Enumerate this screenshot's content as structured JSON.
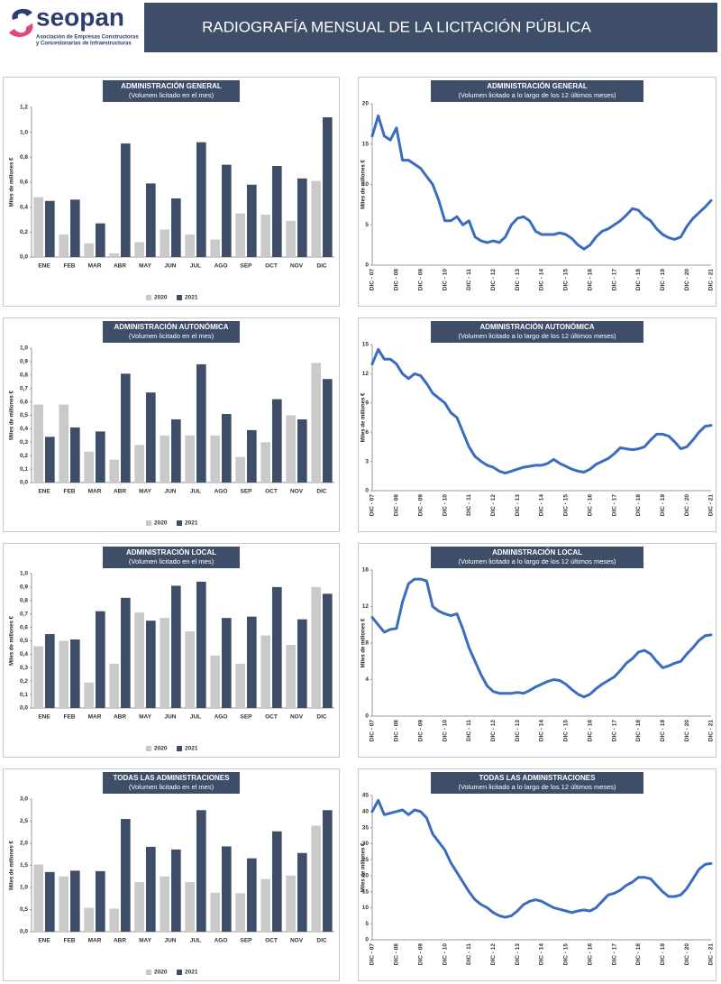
{
  "header": {
    "logo": "seopan",
    "logo_tagline": [
      "Asociación de Empresas Constructoras",
      "y Concesionarias de Infraestructuras"
    ],
    "title": "RADIOGRAFÍA MENSUAL DE LA LICITACIÓN PÚBLICA"
  },
  "chart_data": [
    {
      "type": "bar",
      "title": "ADMINISTRACIÓN GENERAL",
      "subtitle": "(Volumen licitado en el mes)",
      "y_label": "Miles de millones €",
      "categories": [
        "ENE",
        "FEB",
        "MAR",
        "ABR",
        "MAY",
        "JUN",
        "JUL",
        "AGO",
        "SEP",
        "OCT",
        "NOV",
        "DIC"
      ],
      "series": [
        {
          "name": "2020",
          "color": "#c9c9c9",
          "values": [
            0.48,
            0.18,
            0.11,
            0.03,
            0.12,
            0.22,
            0.18,
            0.14,
            0.35,
            0.34,
            0.29,
            0.61
          ]
        },
        {
          "name": "2021",
          "color": "#3e4d68",
          "values": [
            0.45,
            0.46,
            0.27,
            0.91,
            0.59,
            0.47,
            0.92,
            0.74,
            0.58,
            0.73,
            0.63,
            1.12
          ]
        }
      ],
      "ylim": [
        0,
        1.2
      ],
      "yticks": [
        {
          "value": 0,
          "label": "0,0"
        },
        {
          "value": 0.2,
          "label": "0,2"
        },
        {
          "value": 0.4,
          "label": "0,4"
        },
        {
          "value": 0.6,
          "label": "0,6"
        },
        {
          "value": 0.8,
          "label": "0,8"
        },
        {
          "value": 1.0,
          "label": "1,0"
        },
        {
          "value": 1.2,
          "label": "1,2"
        }
      ],
      "grid": false,
      "legend": "bottom"
    },
    {
      "type": "line",
      "title": "ADMINISTRACIÓN GENERAL",
      "subtitle": "(Volumen licitado a lo largo de los 12 últimos meses)",
      "y_label": "Miles de millones €",
      "color": "#3a6cc0",
      "categories": [
        "DIC - 07",
        null,
        null,
        null,
        "DIC - 08",
        null,
        null,
        null,
        "DIC - 09",
        null,
        null,
        null,
        "DIC - 10",
        null,
        null,
        null,
        "DIC - 11",
        null,
        null,
        null,
        "DIC - 12",
        null,
        null,
        null,
        "DIC - 13",
        null,
        null,
        null,
        "DIC - 14",
        null,
        null,
        null,
        "DIC - 15",
        null,
        null,
        null,
        "DIC - 16",
        null,
        null,
        null,
        "DIC - 17",
        null,
        null,
        null,
        "DIC - 18",
        null,
        null,
        null,
        "DIC - 19",
        null,
        null,
        null,
        "DIC - 20",
        null,
        null,
        null,
        "DIC - 21"
      ],
      "values": [
        16,
        18.5,
        16,
        15.5,
        17,
        13,
        13,
        12.5,
        12,
        11,
        10,
        8,
        5.5,
        5.5,
        6,
        5,
        5.5,
        3.5,
        3,
        2.8,
        3,
        2.8,
        3.5,
        5,
        5.8,
        6,
        5.5,
        4.2,
        3.8,
        3.8,
        3.8,
        4,
        3.8,
        3.3,
        2.5,
        2,
        2.5,
        3.5,
        4.2,
        4.5,
        5,
        5.5,
        6.2,
        7,
        6.8,
        6,
        5.5,
        4.5,
        3.8,
        3.4,
        3.2,
        3.5,
        4.8,
        5.8,
        6.5,
        7.2,
        8
      ],
      "ylim": [
        0,
        20
      ],
      "yticks": [
        0,
        5,
        10,
        15,
        20
      ],
      "grid": false
    },
    {
      "type": "bar",
      "title": "ADMINISTRACIÓN AUTONÓMICA",
      "subtitle": "(Volumen licitado en el mes)",
      "y_label": "Miles de millones €",
      "categories": [
        "ENE",
        "FEB",
        "MAR",
        "ABR",
        "MAY",
        "JUN",
        "JUL",
        "AGO",
        "SEP",
        "OCT",
        "NOV",
        "DIC"
      ],
      "series": [
        {
          "name": "2020",
          "color": "#c9c9c9",
          "values": [
            0.58,
            0.58,
            0.23,
            0.17,
            0.28,
            0.35,
            0.35,
            0.35,
            0.19,
            0.3,
            0.5,
            0.89
          ]
        },
        {
          "name": "2021",
          "color": "#3e4d68",
          "values": [
            0.34,
            0.41,
            0.38,
            0.81,
            0.67,
            0.47,
            0.88,
            0.51,
            0.39,
            0.62,
            0.47,
            0.77
          ]
        }
      ],
      "ylim": [
        0,
        1.0
      ],
      "yticks": [
        {
          "value": 0,
          "label": "0,0"
        },
        {
          "value": 0.1,
          "label": "0,1"
        },
        {
          "value": 0.2,
          "label": "0,2"
        },
        {
          "value": 0.3,
          "label": "0,3"
        },
        {
          "value": 0.4,
          "label": "0,4"
        },
        {
          "value": 0.5,
          "label": "0,5"
        },
        {
          "value": 0.6,
          "label": "0,6"
        },
        {
          "value": 0.7,
          "label": "0,7"
        },
        {
          "value": 0.8,
          "label": "0,8"
        },
        {
          "value": 0.9,
          "label": "0,9"
        },
        {
          "value": 1.0,
          "label": "1,0"
        }
      ],
      "grid": false,
      "legend": "bottom"
    },
    {
      "type": "line",
      "title": "ADMINISTRACIÓN AUTONÓMICA",
      "subtitle": "(Volumen licitado a lo largo de los 12 últimos meses)",
      "y_label": "Miles de millones €",
      "color": "#3a6cc0",
      "categories": [
        "DIC - 07",
        null,
        null,
        null,
        "DIC - 08",
        null,
        null,
        null,
        "DIC - 09",
        null,
        null,
        null,
        "DIC - 10",
        null,
        null,
        null,
        "DIC - 11",
        null,
        null,
        null,
        "DIC - 12",
        null,
        null,
        null,
        "DIC - 13",
        null,
        null,
        null,
        "DIC - 14",
        null,
        null,
        null,
        "DIC - 15",
        null,
        null,
        null,
        "DIC - 16",
        null,
        null,
        null,
        "DIC - 17",
        null,
        null,
        null,
        "DIC - 18",
        null,
        null,
        null,
        "DIC - 19",
        null,
        null,
        null,
        "DIC - 20",
        null,
        null,
        null,
        "DIC - 21"
      ],
      "values": [
        13,
        14.5,
        13.5,
        13.5,
        13,
        12,
        11.5,
        12,
        11.8,
        11,
        10,
        9.5,
        9,
        8,
        7.5,
        6,
        4.5,
        3.5,
        3,
        2.6,
        2.4,
        2,
        1.8,
        2,
        2.2,
        2.4,
        2.5,
        2.6,
        2.6,
        2.8,
        3.2,
        2.8,
        2.5,
        2.2,
        2,
        1.9,
        2.2,
        2.7,
        3,
        3.3,
        3.8,
        4.4,
        4.3,
        4.2,
        4.3,
        4.5,
        5.2,
        5.8,
        5.8,
        5.6,
        5,
        4.3,
        4.5,
        5.2,
        6,
        6.6,
        6.7
      ],
      "ylim": [
        0,
        15
      ],
      "yticks": [
        0,
        3,
        6,
        9,
        12,
        15
      ],
      "grid": false
    },
    {
      "type": "bar",
      "title": "ADMINISTRACIÓN LOCAL",
      "subtitle": "(Volumen licitado en el mes)",
      "y_label": "Miles de millones €",
      "categories": [
        "ENE",
        "FEB",
        "MAR",
        "ABR",
        "MAY",
        "JUN",
        "JUL",
        "AGO",
        "SEP",
        "OCT",
        "NOV",
        "DIC"
      ],
      "series": [
        {
          "name": "2020",
          "color": "#c9c9c9",
          "values": [
            0.46,
            0.5,
            0.19,
            0.33,
            0.71,
            0.67,
            0.57,
            0.39,
            0.33,
            0.54,
            0.47,
            0.9
          ]
        },
        {
          "name": "2021",
          "color": "#3e4d68",
          "values": [
            0.55,
            0.51,
            0.72,
            0.82,
            0.65,
            0.91,
            0.94,
            0.67,
            0.68,
            0.9,
            0.66,
            0.85
          ]
        }
      ],
      "ylim": [
        0,
        1.0
      ],
      "yticks": [
        {
          "value": 0,
          "label": "0,0"
        },
        {
          "value": 0.1,
          "label": "0,1"
        },
        {
          "value": 0.2,
          "label": "0,2"
        },
        {
          "value": 0.3,
          "label": "0,3"
        },
        {
          "value": 0.4,
          "label": "0,4"
        },
        {
          "value": 0.5,
          "label": "0,5"
        },
        {
          "value": 0.6,
          "label": "0,6"
        },
        {
          "value": 0.7,
          "label": "0,7"
        },
        {
          "value": 0.8,
          "label": "0,8"
        },
        {
          "value": 0.9,
          "label": "0,9"
        },
        {
          "value": 1.0,
          "label": "1,0"
        }
      ],
      "grid": false,
      "legend": "bottom"
    },
    {
      "type": "line",
      "title": "ADMINISTRACIÓN LOCAL",
      "subtitle": "(Volumen licitado a lo largo de los 12 últimos meses)",
      "y_label": "Miles de millones €",
      "color": "#3a6cc0",
      "categories": [
        "DIC - 07",
        null,
        null,
        null,
        "DIC - 08",
        null,
        null,
        null,
        "DIC - 09",
        null,
        null,
        null,
        "DIC - 10",
        null,
        null,
        null,
        "DIC - 11",
        null,
        null,
        null,
        "DIC - 12",
        null,
        null,
        null,
        "DIC - 13",
        null,
        null,
        null,
        "DIC - 14",
        null,
        null,
        null,
        "DIC - 15",
        null,
        null,
        null,
        "DIC - 16",
        null,
        null,
        null,
        "DIC - 17",
        null,
        null,
        null,
        "DIC - 18",
        null,
        null,
        null,
        "DIC - 19",
        null,
        null,
        null,
        "DIC - 20",
        null,
        null,
        null,
        "DIC - 21"
      ],
      "values": [
        10.8,
        10,
        9.2,
        9.5,
        9.6,
        12.5,
        14.5,
        15,
        15,
        14.8,
        12,
        11.5,
        11.2,
        11,
        11.2,
        9.5,
        7.5,
        6,
        4.5,
        3.3,
        2.7,
        2.5,
        2.5,
        2.5,
        2.6,
        2.5,
        2.8,
        3.2,
        3.5,
        3.8,
        4,
        3.9,
        3.5,
        2.9,
        2.4,
        2.1,
        2.4,
        3,
        3.5,
        3.9,
        4.3,
        5,
        5.8,
        6.3,
        7,
        7.2,
        6.8,
        6,
        5.3,
        5.5,
        5.8,
        6,
        6.8,
        7.5,
        8.3,
        8.8,
        8.9
      ],
      "ylim": [
        0,
        16
      ],
      "yticks": [
        0,
        4,
        8,
        12,
        16
      ],
      "grid": false
    },
    {
      "type": "bar",
      "title": "TODAS  LAS ADMINISTRACIONES",
      "subtitle": "(Volumen licitado en el mes)",
      "y_label": "Miles de millones €",
      "categories": [
        "ENE",
        "FEB",
        "MAR",
        "ABR",
        "MAY",
        "JUN",
        "JUL",
        "AGO",
        "SEP",
        "OCT",
        "NOV",
        "DIC"
      ],
      "series": [
        {
          "name": "2020",
          "color": "#c9c9c9",
          "values": [
            1.52,
            1.25,
            0.54,
            0.52,
            1.12,
            1.25,
            1.12,
            0.88,
            0.87,
            1.19,
            1.27,
            2.4
          ]
        },
        {
          "name": "2021",
          "color": "#3e4d68",
          "values": [
            1.35,
            1.38,
            1.37,
            2.55,
            1.92,
            1.86,
            2.75,
            1.93,
            1.66,
            2.27,
            1.78,
            2.75
          ]
        }
      ],
      "ylim": [
        0,
        3.0
      ],
      "yticks": [
        {
          "value": 0,
          "label": "0,0"
        },
        {
          "value": 0.5,
          "label": "0,5"
        },
        {
          "value": 1.0,
          "label": "1,0"
        },
        {
          "value": 1.5,
          "label": "1,5"
        },
        {
          "value": 2.0,
          "label": "2,0"
        },
        {
          "value": 2.5,
          "label": "2,5"
        },
        {
          "value": 3.0,
          "label": "3,0"
        }
      ],
      "grid": false,
      "legend": "bottom"
    },
    {
      "type": "line",
      "title": "TODAS LAS ADMINISTRACIONES",
      "subtitle": "(Volumen licitado a lo largo de los 12 últimos meses)",
      "y_label": "Miles de millones €",
      "color": "#3a6cc0",
      "categories": [
        "DIC - 07",
        null,
        null,
        null,
        "DIC - 08",
        null,
        null,
        null,
        "DIC - 09",
        null,
        null,
        null,
        "DIC - 10",
        null,
        null,
        null,
        "DIC - 11",
        null,
        null,
        null,
        "DIC - 12",
        null,
        null,
        null,
        "DIC - 13",
        null,
        null,
        null,
        "DIC - 14",
        null,
        null,
        null,
        "DIC - 15",
        null,
        null,
        null,
        "DIC - 16",
        null,
        null,
        null,
        "DIC - 17",
        null,
        null,
        null,
        "DIC - 18",
        null,
        null,
        null,
        "DIC - 19",
        null,
        null,
        null,
        "DIC - 20",
        null,
        null,
        null,
        "DIC - 21"
      ],
      "values": [
        40,
        43.5,
        39,
        39.5,
        40,
        40.5,
        39,
        40.5,
        40,
        38,
        33,
        30.5,
        28,
        24,
        21,
        18,
        15,
        12.5,
        11,
        10,
        8.5,
        7.5,
        7,
        7.5,
        9,
        11,
        12,
        12.5,
        12,
        11,
        10,
        9.5,
        9,
        8.5,
        9,
        9.3,
        9,
        10,
        12,
        14,
        14.5,
        15.5,
        17,
        18,
        19.5,
        19.5,
        19,
        17,
        15,
        13.5,
        13.5,
        14,
        16,
        19,
        22,
        23.5,
        23.8
      ],
      "ylim": [
        0,
        45
      ],
      "yticks": [
        0,
        5,
        10,
        15,
        20,
        25,
        30,
        35,
        40,
        45
      ],
      "grid": false
    }
  ]
}
